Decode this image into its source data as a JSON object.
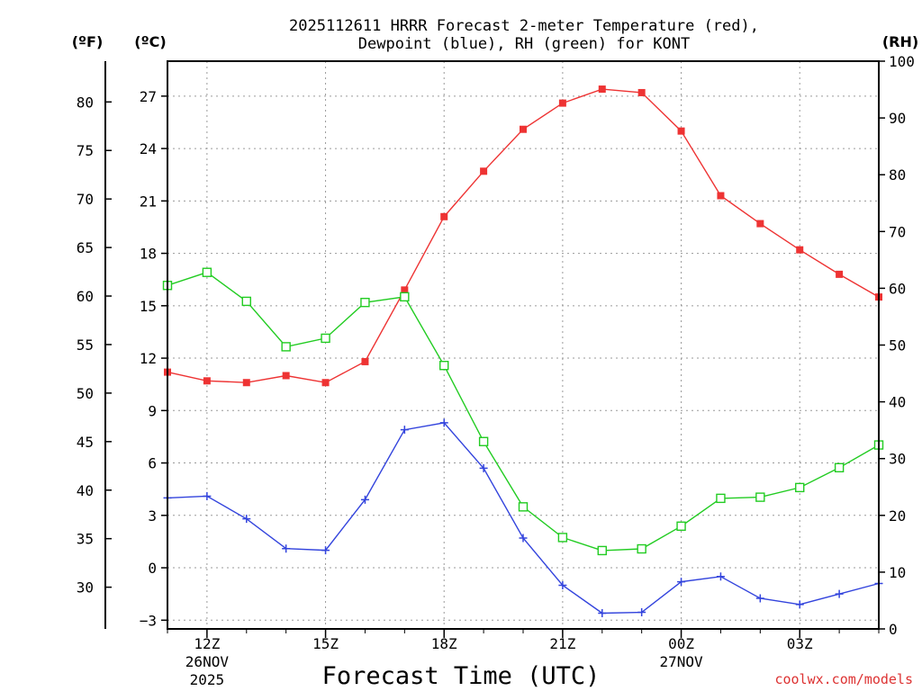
{
  "colors": {
    "temperature": "#ee3333",
    "dewpoint": "#3344dd",
    "rh": "#22cc22",
    "grid": "#9a9a9a",
    "axis": "#000000",
    "watermark": "#dd3333"
  },
  "chart_data": {
    "type": "line",
    "title_line1": "2025112611 HRRR Forecast 2-meter Temperature (red),",
    "title_line2": "Dewpoint (blue), RH (green) for KONT",
    "xlabel": "Forecast Time (UTC)",
    "watermark": "coolwx.com/models",
    "axis_labels": {
      "fahrenheit": "(ºF)",
      "celsius": "(ºC)",
      "rh": "(RH)"
    },
    "x_hours": [
      11,
      12,
      13,
      14,
      15,
      16,
      17,
      18,
      19,
      20,
      21,
      22,
      23,
      24,
      25,
      26,
      27,
      28,
      29
    ],
    "x_ticks": [
      {
        "hour": 12,
        "label": "12Z",
        "line2": "26NOV",
        "line3": "2025"
      },
      {
        "hour": 15,
        "label": "15Z",
        "line2": "",
        "line3": ""
      },
      {
        "hour": 18,
        "label": "18Z",
        "line2": "",
        "line3": ""
      },
      {
        "hour": 21,
        "label": "21Z",
        "line2": "",
        "line3": ""
      },
      {
        "hour": 24,
        "label": "00Z",
        "line2": "27NOV",
        "line3": ""
      },
      {
        "hour": 27,
        "label": "03Z",
        "line2": "",
        "line3": ""
      }
    ],
    "xlim": [
      11,
      29
    ],
    "celsius_axis": {
      "ylim": [
        -3.5,
        29
      ],
      "ticks": [
        -3,
        0,
        3,
        6,
        9,
        12,
        15,
        18,
        21,
        24,
        27
      ],
      "tick_labels": [
        "−3",
        "0",
        "3",
        "6",
        "9",
        "12",
        "15",
        "18",
        "21",
        "24",
        "27"
      ]
    },
    "fahrenheit_axis": {
      "ticks": [
        30,
        35,
        40,
        45,
        50,
        55,
        60,
        65,
        70,
        75,
        80
      ],
      "tick_labels": [
        "30",
        "35",
        "40",
        "45",
        "50",
        "55",
        "60",
        "65",
        "70",
        "75",
        "80"
      ]
    },
    "rh_axis": {
      "ylim": [
        0,
        100
      ],
      "ticks": [
        0,
        10,
        20,
        30,
        40,
        50,
        60,
        70,
        80,
        90,
        100
      ],
      "tick_labels": [
        "0",
        "10",
        "20",
        "30",
        "40",
        "50",
        "60",
        "70",
        "80",
        "90",
        "100"
      ]
    },
    "series": [
      {
        "name": "Temperature",
        "units": "C",
        "marker": "filled-square",
        "values": [
          11.2,
          10.7,
          10.6,
          11.0,
          10.6,
          11.8,
          15.9,
          20.1,
          22.7,
          25.1,
          26.6,
          27.4,
          27.2,
          25.0,
          21.3,
          19.7,
          18.2,
          16.8,
          15.5
        ]
      },
      {
        "name": "Dewpoint",
        "units": "C",
        "marker": "plus",
        "values": [
          4.0,
          4.1,
          2.8,
          1.1,
          1.0,
          3.9,
          7.9,
          8.3,
          5.7,
          1.7,
          -1.0,
          -2.6,
          -2.55,
          -0.8,
          -0.5,
          -1.75,
          -2.1,
          -1.5,
          -0.9
        ]
      },
      {
        "name": "RH",
        "units": "%",
        "marker": "open-square",
        "values": [
          60.5,
          62.8,
          57.7,
          49.7,
          51.2,
          57.5,
          58.5,
          46.4,
          33.0,
          21.5,
          16.1,
          13.8,
          14.1,
          18.1,
          23.0,
          23.2,
          24.9,
          28.4,
          32.4
        ]
      }
    ]
  }
}
